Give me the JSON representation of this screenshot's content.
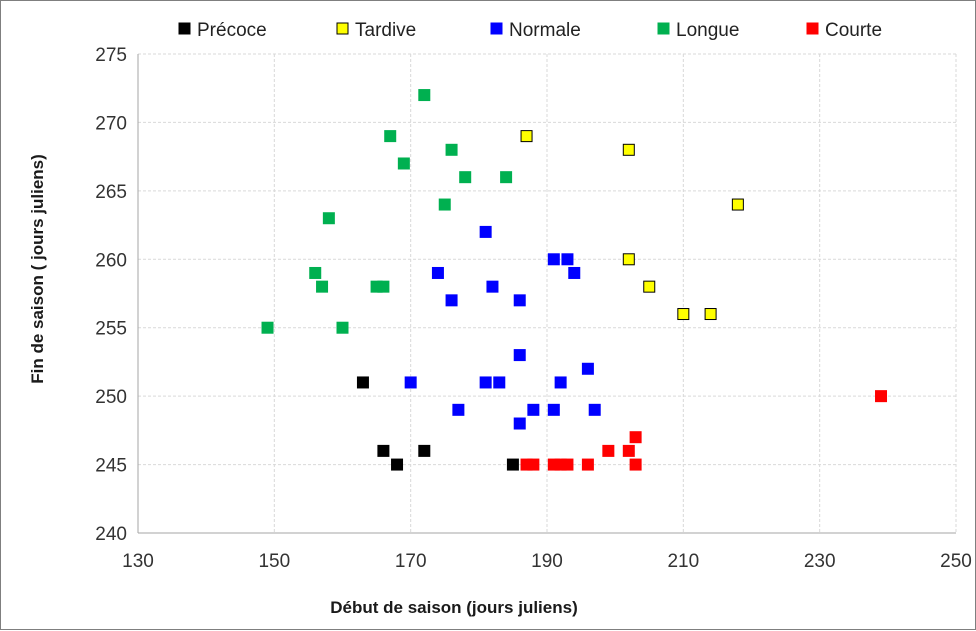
{
  "chart_data": {
    "type": "scatter",
    "xlabel": "Début de saison (jours juliens)",
    "ylabel": "Fin de saison ( jours juliens)",
    "xlim": [
      130,
      250
    ],
    "ylim": [
      240,
      275
    ],
    "xticks": [
      130,
      150,
      170,
      190,
      210,
      230,
      250
    ],
    "yticks": [
      240,
      245,
      250,
      255,
      260,
      265,
      270,
      275
    ],
    "grid": true,
    "legend_position": "top",
    "series": [
      {
        "name": "Précoce",
        "color": "#000000",
        "marker_border": "#000000",
        "points": [
          [
            163,
            251
          ],
          [
            166,
            246
          ],
          [
            168,
            245
          ],
          [
            172,
            246
          ],
          [
            185,
            245
          ]
        ]
      },
      {
        "name": "Tardive",
        "color": "#ffff00",
        "marker_border": "#000000",
        "points": [
          [
            187,
            269
          ],
          [
            202,
            268
          ],
          [
            218,
            264
          ],
          [
            202,
            260
          ],
          [
            205,
            258
          ],
          [
            210,
            256
          ],
          [
            214,
            256
          ]
        ]
      },
      {
        "name": "Normale",
        "color": "#0000ff",
        "marker_border": "#0000ff",
        "points": [
          [
            181,
            262
          ],
          [
            191,
            260
          ],
          [
            193,
            260
          ],
          [
            174,
            259
          ],
          [
            194,
            259
          ],
          [
            182,
            258
          ],
          [
            176,
            257
          ],
          [
            186,
            257
          ],
          [
            186,
            253
          ],
          [
            196,
            252
          ],
          [
            170,
            251
          ],
          [
            181,
            251
          ],
          [
            183,
            251
          ],
          [
            192,
            251
          ],
          [
            177,
            249
          ],
          [
            188,
            249
          ],
          [
            191,
            249
          ],
          [
            197,
            249
          ],
          [
            186,
            248
          ]
        ]
      },
      {
        "name": "Longue",
        "color": "#00b050",
        "marker_border": "#00b050",
        "points": [
          [
            172,
            272
          ],
          [
            167,
            269
          ],
          [
            176,
            268
          ],
          [
            169,
            267
          ],
          [
            178,
            266
          ],
          [
            184,
            266
          ],
          [
            175,
            264
          ],
          [
            158,
            263
          ],
          [
            156,
            259
          ],
          [
            157,
            258
          ],
          [
            165,
            258
          ],
          [
            166,
            258
          ],
          [
            149,
            255
          ],
          [
            160,
            255
          ]
        ]
      },
      {
        "name": "Courte",
        "color": "#ff0000",
        "marker_border": "#ff0000",
        "points": [
          [
            239,
            250
          ],
          [
            203,
            247
          ],
          [
            199,
            246
          ],
          [
            202,
            246
          ],
          [
            187,
            245
          ],
          [
            188,
            245
          ],
          [
            191,
            245
          ],
          [
            192,
            245
          ],
          [
            193,
            245
          ],
          [
            196,
            245
          ],
          [
            203,
            245
          ]
        ]
      }
    ]
  }
}
